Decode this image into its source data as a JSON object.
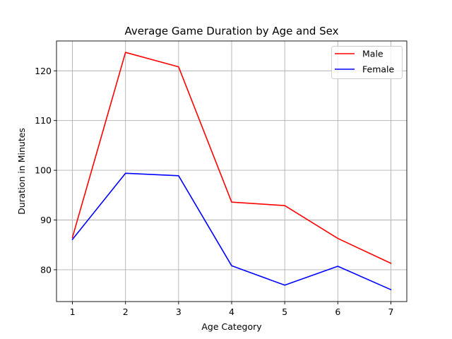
{
  "chart_data": {
    "type": "line",
    "title": "Average Game Duration by Age and Sex",
    "xlabel": "Age Category",
    "ylabel": "Duration in Minutes",
    "x": [
      1,
      2,
      3,
      4,
      5,
      6,
      7
    ],
    "xlim": [
      0.7,
      7.3
    ],
    "ylim": [
      73.6,
      126.0
    ],
    "xticks": [
      1,
      2,
      3,
      4,
      5,
      6,
      7
    ],
    "yticks": [
      80,
      90,
      100,
      110,
      120
    ],
    "grid": true,
    "legend_position": "top-right",
    "series": [
      {
        "name": "Male",
        "color": "#ff0000",
        "values": [
          86.5,
          123.7,
          120.8,
          93.6,
          92.9,
          86.3,
          81.3
        ]
      },
      {
        "name": "Female",
        "color": "#0000ff",
        "values": [
          86.1,
          99.4,
          98.9,
          80.8,
          76.9,
          80.7,
          76.0
        ]
      }
    ]
  }
}
